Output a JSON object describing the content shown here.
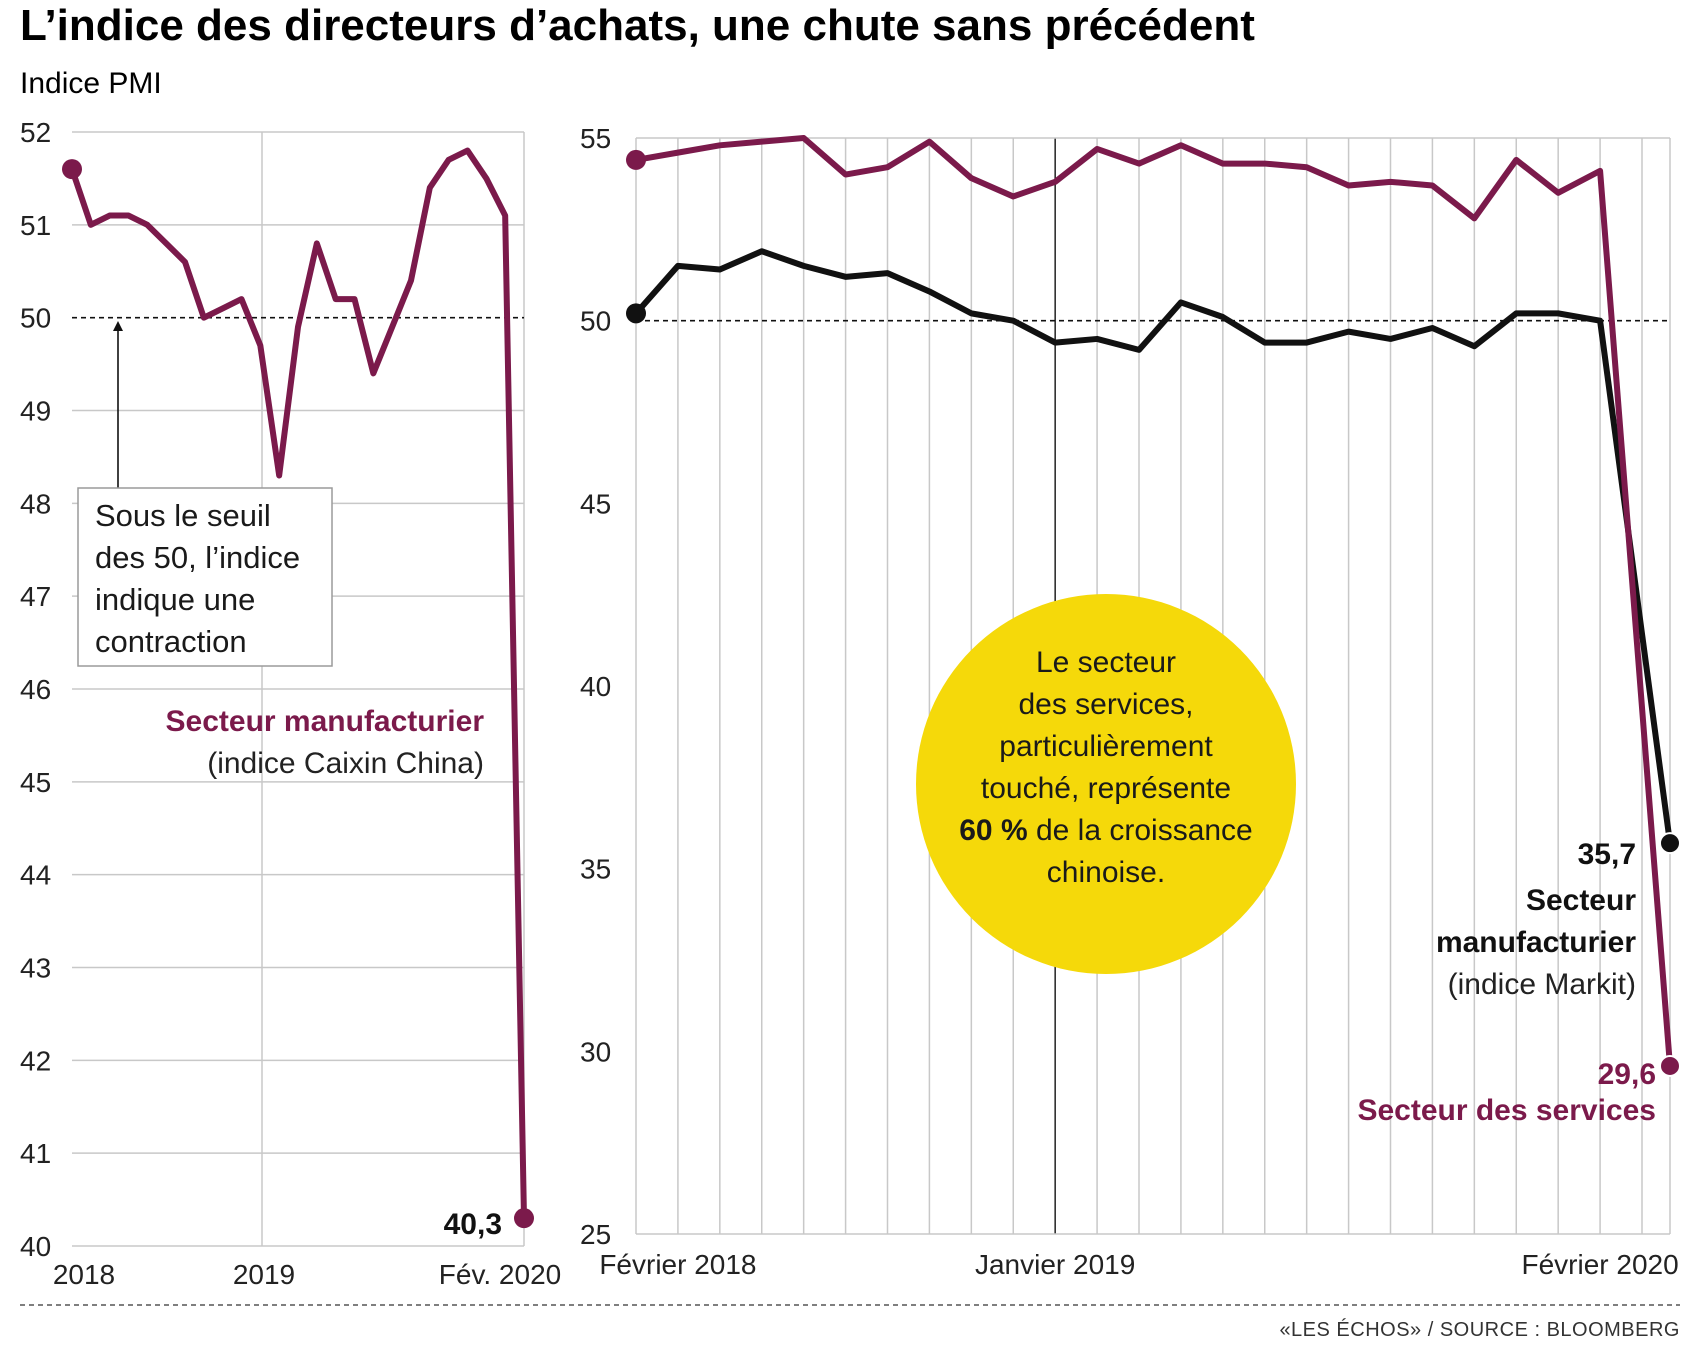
{
  "title": "L’indice des directeurs d’achats, une chute sans précédent",
  "subtitle": "Indice PMI",
  "colors": {
    "purple": "#7b1a4b",
    "black": "#111111",
    "yellow": "#f5d90a",
    "grid": "#c8c8c8"
  },
  "note_box": {
    "lines": [
      "Sous le seuil",
      "des 50, l’indice",
      "indique une",
      "contraction"
    ]
  },
  "left_series_label": {
    "name": "Secteur manufacturier",
    "sub": "(indice Caixin China)"
  },
  "bubble": {
    "line1": "Le secteur",
    "line2": "des services,",
    "line3": "particulièrement",
    "line4": "touché, représente",
    "bold": "60 %",
    "line5_rest": " de la croissance",
    "line6": "chinoise."
  },
  "right_labels": {
    "manuf_value": "35,7",
    "manuf_name_1": "Secteur",
    "manuf_name_2": "manufacturier",
    "manuf_sub": "(indice Markit)",
    "serv_value": "29,6",
    "serv_name": "Secteur des services"
  },
  "left_value_label": "40,3",
  "source": "«LES ÉCHOS» / SOURCE : BLOOMBERG",
  "chart_data": [
    {
      "type": "line",
      "ylim": [
        40,
        52
      ],
      "yticks": [
        40,
        41,
        42,
        43,
        44,
        45,
        46,
        47,
        48,
        49,
        50,
        51,
        52
      ],
      "xtick_labels": [
        "2018",
        "2019",
        "Fév. 2020"
      ],
      "threshold": 50,
      "series": [
        {
          "name": "Secteur manufacturier",
          "color": "#7b1a4b",
          "values": [
            51.6,
            51.0,
            51.1,
            51.1,
            51.0,
            50.8,
            50.6,
            50.0,
            50.1,
            50.2,
            49.7,
            48.3,
            49.9,
            50.8,
            50.2,
            50.2,
            49.4,
            49.9,
            50.4,
            51.4,
            51.7,
            51.8,
            51.5,
            51.1,
            40.3
          ]
        }
      ]
    },
    {
      "type": "line",
      "ylim": [
        25,
        55
      ],
      "yticks": [
        25,
        30,
        35,
        40,
        45,
        50,
        55
      ],
      "xtick_labels": [
        "Février 2018",
        "Janvier 2019",
        "Février 2020"
      ],
      "threshold": 50,
      "series": [
        {
          "name": "Secteur des services",
          "color": "#7b1a4b",
          "values": [
            54.4,
            54.6,
            54.8,
            54.9,
            55.0,
            54.0,
            54.2,
            54.9,
            53.9,
            53.4,
            53.8,
            54.7,
            54.3,
            54.8,
            54.3,
            54.3,
            54.2,
            53.7,
            53.8,
            53.7,
            52.8,
            54.4,
            53.5,
            54.1,
            29.6
          ]
        },
        {
          "name": "Secteur manufacturier",
          "color": "#111111",
          "values": [
            50.2,
            51.5,
            51.4,
            51.9,
            51.5,
            51.2,
            51.3,
            50.8,
            50.2,
            50.0,
            49.4,
            49.5,
            49.2,
            50.5,
            50.1,
            49.4,
            49.4,
            49.7,
            49.5,
            49.8,
            49.3,
            50.2,
            50.2,
            50.0,
            35.7
          ]
        }
      ]
    }
  ]
}
